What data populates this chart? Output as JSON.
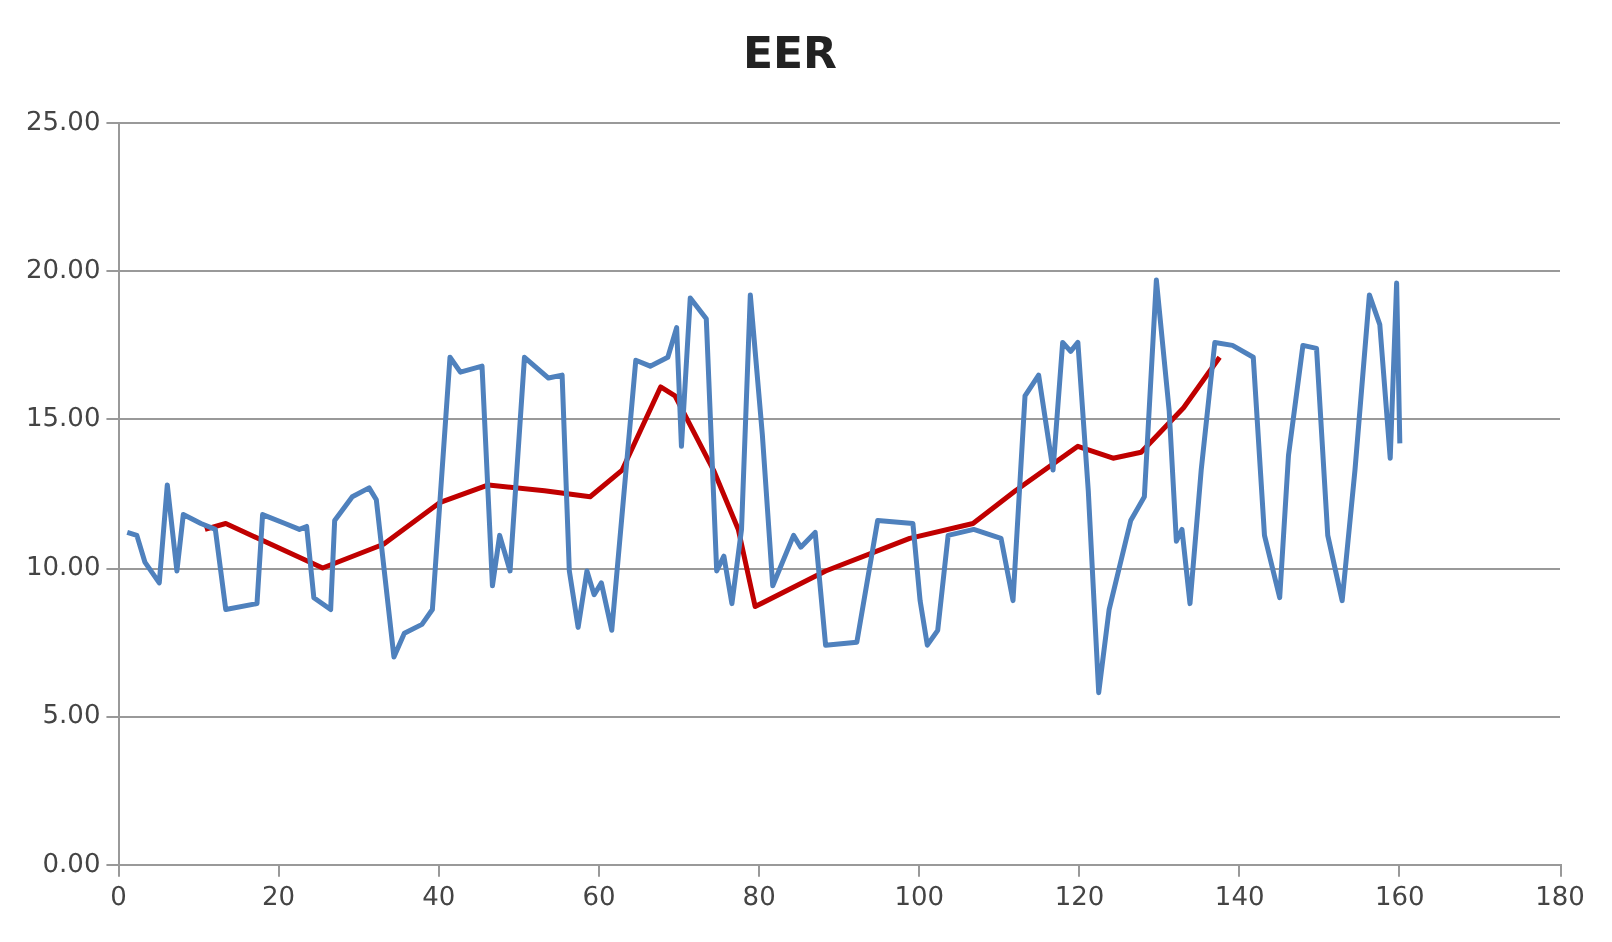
{
  "chart_data": {
    "type": "line",
    "title": "EER",
    "xlim": [
      0,
      180
    ],
    "xticks": [
      0,
      20,
      40,
      60,
      80,
      100,
      120,
      140,
      160,
      180
    ],
    "ylim": [
      0,
      25
    ],
    "yticks": [
      {
        "value": 0,
        "label": "0.00"
      },
      {
        "value": 5,
        "label": "5.00"
      },
      {
        "value": 10,
        "label": "10.00"
      },
      {
        "value": 15,
        "label": "15.00"
      },
      {
        "value": 20,
        "label": "20.00"
      },
      {
        "value": 25,
        "label": "25.00"
      }
    ],
    "grid": "y",
    "legend": false,
    "marker": "none",
    "line_style": "solid",
    "series": [
      {
        "color": "#4f81bd",
        "x": [
          1.1,
          2.3,
          3.3,
          5.1,
          6.1,
          7.3,
          8.1,
          10.3,
          12.1,
          13.4,
          17.3,
          18.0,
          20.8,
          22.6,
          23.5,
          24.4,
          26.5,
          27.0,
          29.2,
          31.3,
          32.2,
          34.4,
          35.7,
          37.9,
          39.2,
          41.4,
          42.7,
          45.4,
          46.7,
          47.6,
          48.9,
          50.7,
          53.7,
          55.4,
          56.3,
          57.4,
          58.5,
          59.4,
          60.3,
          61.6,
          64.6,
          66.4,
          68.6,
          69.7,
          70.3,
          71.4,
          73.4,
          74.7,
          75.6,
          76.6,
          77.8,
          78.9,
          80.4,
          81.7,
          84.3,
          85.2,
          87.0,
          88.3,
          92.2,
          94.8,
          99.2,
          100.1,
          101.0,
          102.3,
          103.6,
          106.8,
          110.2,
          111.7,
          113.2,
          114.9,
          116.7,
          117.9,
          118.9,
          119.8,
          121.1,
          122.4,
          123.7,
          126.4,
          128.1,
          129.6,
          131.2,
          132.1,
          132.8,
          133.8,
          135.2,
          136.9,
          139.1,
          141.7,
          143.1,
          145.0,
          146.1,
          147.9,
          149.6,
          151.0,
          152.8,
          154.4,
          156.2,
          157.5,
          158.8,
          159.6,
          160.0
        ],
        "values": [
          11.2,
          11.1,
          10.2,
          9.5,
          12.8,
          9.9,
          11.8,
          11.5,
          11.3,
          8.6,
          8.8,
          11.8,
          11.5,
          11.3,
          11.4,
          9.0,
          8.6,
          11.6,
          12.4,
          12.7,
          12.3,
          7.0,
          7.8,
          8.1,
          8.6,
          17.1,
          16.6,
          16.8,
          9.4,
          11.1,
          9.9,
          17.1,
          16.4,
          16.5,
          9.9,
          8.0,
          9.9,
          9.1,
          9.5,
          7.9,
          17.0,
          16.8,
          17.1,
          18.1,
          14.1,
          19.1,
          18.4,
          9.9,
          10.4,
          8.8,
          11.3,
          19.2,
          14.5,
          9.4,
          11.1,
          10.7,
          11.2,
          7.4,
          7.5,
          11.6,
          11.5,
          8.9,
          7.4,
          7.9,
          11.1,
          11.3,
          11.0,
          8.9,
          15.8,
          16.5,
          13.3,
          17.6,
          17.3,
          17.6,
          12.6,
          5.8,
          8.6,
          11.6,
          12.4,
          19.7,
          15.3,
          10.9,
          11.3,
          8.8,
          13.3,
          17.6,
          17.5,
          17.1,
          11.1,
          9.0,
          13.8,
          17.5,
          17.4,
          11.1,
          8.9,
          13.3,
          19.2,
          18.2,
          13.7,
          19.6,
          14.2
        ]
      },
      {
        "type": "line",
        "color": "#c00000",
        "x": [
          10.8,
          13.4,
          25.5,
          33.1,
          40.1,
          46.2,
          53.2,
          58.9,
          62.9,
          67.7,
          69.5,
          74.3,
          77.4,
          79.5,
          88.3,
          98.8,
          106.7,
          112.0,
          119.8,
          124.2,
          127.7,
          133.0,
          137.5
        ],
        "values": [
          11.3,
          11.5,
          10.0,
          10.8,
          12.2,
          12.8,
          12.6,
          12.4,
          13.3,
          16.1,
          15.8,
          13.3,
          11.3,
          8.7,
          9.9,
          11.0,
          11.5,
          12.6,
          14.1,
          13.7,
          13.9,
          15.4,
          17.1
        ]
      }
    ]
  }
}
